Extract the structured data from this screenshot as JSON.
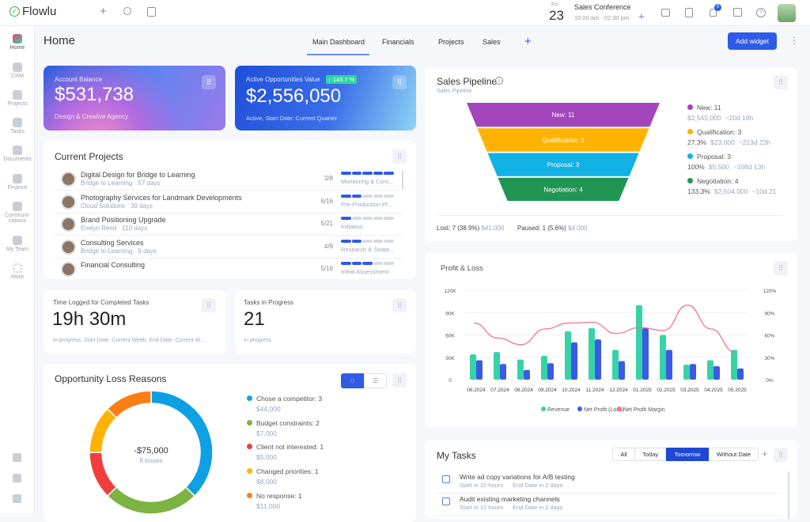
{
  "app": {
    "name": "Flowlu"
  },
  "topbar": {
    "day": "Fri",
    "date": "23",
    "event_title": "Sales Conference",
    "event_time": "10:00 am - 02:30 pm",
    "notif_count": "0"
  },
  "sidebar": {
    "items": [
      {
        "label": "Home"
      },
      {
        "label": "CRM"
      },
      {
        "label": "Projects"
      },
      {
        "label": "Tasks"
      },
      {
        "label": "Documents"
      },
      {
        "label": "Finance"
      },
      {
        "label": "Communi-cations"
      },
      {
        "label": "My Team"
      },
      {
        "label": "More"
      }
    ]
  },
  "header": {
    "title": "Home",
    "tabs": [
      {
        "label": "Main Dashboard"
      },
      {
        "label": "Financials"
      },
      {
        "label": "Projects"
      },
      {
        "label": "Sales"
      }
    ],
    "add_widget": "Add widget"
  },
  "account_balance": {
    "label": "Account Balance",
    "value": "$531,738",
    "sub": "Design & Creative Agency"
  },
  "active_opps": {
    "label": "Active Opportunities Value",
    "badge": "↑ 143.7 %",
    "value": "$2,556,050",
    "sub": "Active, Start Date: Current Quarter"
  },
  "projects": {
    "title": "Current Projects",
    "items": [
      {
        "name": "Digital Design for Bridge to Learning",
        "client": "Bridge to Learning",
        "days": "57 days",
        "count": "3/8",
        "progress": 1.0,
        "stage": "Monitoring & Cont..."
      },
      {
        "name": "Photography Services for Landmark Developments",
        "client": "Cloud Solutions",
        "days": "39 days",
        "count": "6/16",
        "progress": 0.4,
        "stage": "Pre-Production Pl..."
      },
      {
        "name": "Brand Positioning Upgrade",
        "client": "Evelyn Reed",
        "days": "110 days",
        "count": "5/21",
        "progress": 0.2,
        "stage": "Initiation"
      },
      {
        "name": "Consulting Services",
        "client": "Bridge to Learning",
        "days": "9 days",
        "count": "4/9",
        "progress": 0.4,
        "stage": "Research & Strate..."
      },
      {
        "name": "Financial Consulting",
        "client": "",
        "days": "",
        "count": "5/16",
        "progress": 0.5,
        "stage": "Initial Assessment"
      }
    ]
  },
  "time_logged": {
    "label": "Time Logged for Completed Tasks",
    "value": "19h 30m",
    "sub": "In progress, Start Date: Current Week, End Date: Current W..."
  },
  "tasks_progress": {
    "label": "Tasks in Progress",
    "value": "21",
    "sub": "In progress"
  },
  "loss": {
    "title": "Opportunity Loss Reasons",
    "total": "-$75,000",
    "count": "8 losses",
    "chart_data": {
      "type": "pie",
      "slices": [
        {
          "label": "Chose a competitor: 3",
          "value": 3,
          "amount": "$44,000",
          "color": "#0ea0e4"
        },
        {
          "label": "Budget constraints: 2",
          "value": 2,
          "amount": "$7,000",
          "color": "#7cb342"
        },
        {
          "label": "Client not interested: 1",
          "value": 1,
          "amount": "$5,000",
          "color": "#f03e3e"
        },
        {
          "label": "Changed priorities: 1",
          "value": 1,
          "amount": "$8,000",
          "color": "#ffb300"
        },
        {
          "label": "No response: 1",
          "value": 1,
          "amount": "$11,000",
          "color": "#fd7e14"
        }
      ]
    }
  },
  "pipeline": {
    "title": "Sales Pipeline",
    "subtitle": "Sales Pipeline",
    "stages": [
      {
        "label": "New: 11",
        "pct": "",
        "amount": "$2,545,000",
        "time": "~20d 19h",
        "color": "#a345bd"
      },
      {
        "label": "Qualification: 3",
        "pct": "27.3%",
        "amount": "$23,000",
        "time": "~213d 23h",
        "color": "#ffb300"
      },
      {
        "label": "Proposal: 3",
        "pct": "100%",
        "amount": "$5,500",
        "time": "~108d 13h",
        "color": "#12b1e6"
      },
      {
        "label": "Negotiation: 4",
        "pct": "133.3%",
        "amount": "$2,504,000",
        "time": "~10d 21",
        "color": "#219653"
      }
    ],
    "lost": "Lost: 7 (38.9%)",
    "lost_amount": "$41,000",
    "paused": "Paused: 1 (5.6%)",
    "paused_amount": "$4,000"
  },
  "pnl": {
    "title": "Profit & Loss",
    "chart_data": {
      "type": "bar",
      "categories": [
        "06.2024",
        "07.2024",
        "08.2024",
        "09.2024",
        "10.2024",
        "11.2024",
        "12.2024",
        "01.2025",
        "02.2025",
        "03.2025",
        "04.2025",
        "05.2025"
      ],
      "series": [
        {
          "name": "Revenue",
          "color": "#36d3a8",
          "values": [
            34000,
            37000,
            27000,
            32000,
            65000,
            69000,
            40000,
            100000,
            60000,
            20000,
            26000,
            40000
          ]
        },
        {
          "name": "Net Profit (Loss)",
          "color": "#3a5be6",
          "values": [
            26000,
            21000,
            13000,
            22000,
            50000,
            54000,
            25000,
            69000,
            40000,
            21000,
            18000,
            15000
          ]
        },
        {
          "name": "Net Profit Margin",
          "type": "line",
          "axis": "right",
          "color": "#f7718b",
          "values": [
            76,
            56,
            47,
            68,
            76,
            77,
            62,
            70,
            66,
            100,
            68,
            37
          ]
        }
      ],
      "ylim": [
        0,
        120000
      ],
      "yticks": [
        "0",
        "30K",
        "60K",
        "90K",
        "120K"
      ],
      "y2lim": [
        0,
        120
      ],
      "y2ticks": [
        "0%",
        "30%",
        "60%",
        "90%",
        "120%"
      ],
      "grid": true,
      "legend": "bottom"
    }
  },
  "tasks": {
    "title": "My Tasks",
    "filters": [
      "All",
      "Today",
      "Tomorrow",
      "Without Date"
    ],
    "active_filter": "Tomorrow",
    "items": [
      {
        "name": "Write ad copy variations for A/B testing",
        "start": "Start in 10 hours",
        "end": "End Date in 2 days"
      },
      {
        "name": "Audit existing marketing channels",
        "start": "Start in 10 hours",
        "end": "End Date in 2 days"
      }
    ]
  },
  "colors": {
    "accent": "#2f5be6",
    "brand_green": "#2bb24c"
  }
}
